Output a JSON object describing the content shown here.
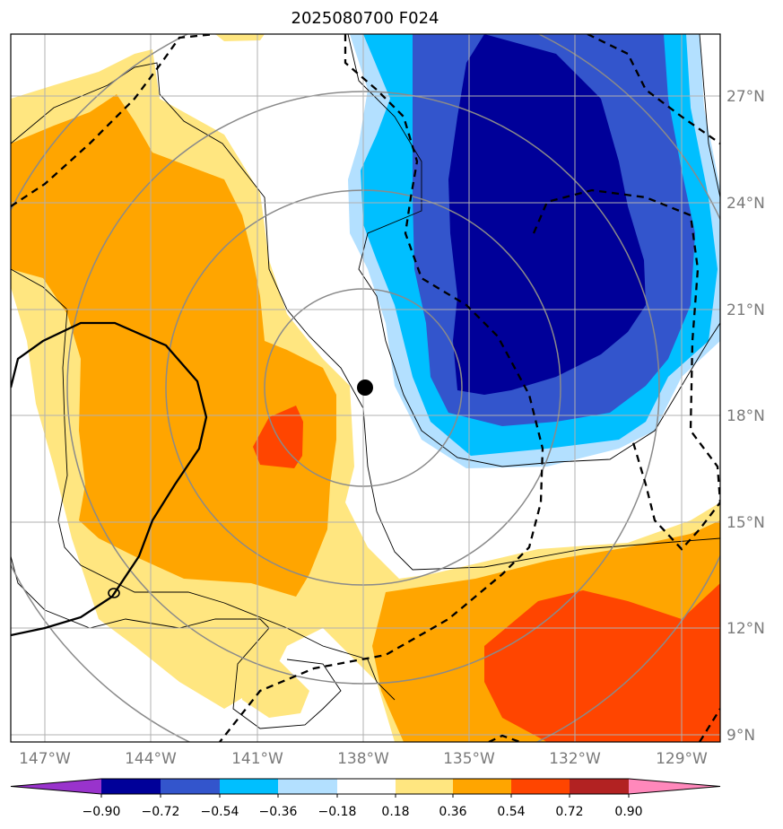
{
  "title": "2025080700 F024",
  "map": {
    "lon_labels": [
      "147°W",
      "144°W",
      "141°W",
      "138°W",
      "135°W",
      "132°W",
      "129°W"
    ],
    "lat_labels": [
      "27°N",
      "24°N",
      "21°N",
      "18°N",
      "15°N",
      "12°N",
      "9°N"
    ],
    "center_marker": "storm-center-dot",
    "contour_label": "0"
  },
  "colorbar": {
    "levels": [
      "−0.90",
      "−0.72",
      "−0.54",
      "−0.36",
      "−0.18",
      "0.18",
      "0.36",
      "0.54",
      "0.72",
      "0.90"
    ],
    "colors": [
      "#9933cc",
      "#000099",
      "#3355cc",
      "#00bfff",
      "#b3e0ff",
      "#ffffff",
      "#ffe680",
      "#ffa500",
      "#ff4500",
      "#b22222",
      "#ff88bb"
    ]
  }
}
